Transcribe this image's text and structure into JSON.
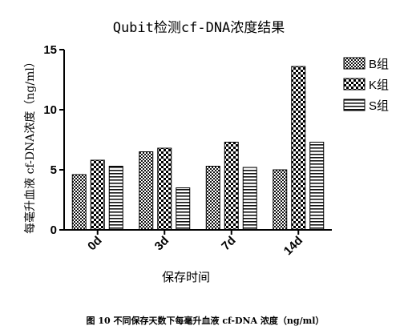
{
  "chart_data": {
    "type": "bar",
    "title": "Qubit检测cf-DNA浓度结果",
    "xlabel": "保存时间",
    "ylabel": "每毫升血液 cf-DNA浓度（ng/ml）",
    "categories": [
      "0d",
      "3d",
      "7d",
      "14d"
    ],
    "series": [
      {
        "name": "B组",
        "values": [
          4.6,
          6.5,
          5.3,
          5.0
        ],
        "pattern": "checker-fine"
      },
      {
        "name": "K组",
        "values": [
          5.8,
          6.8,
          7.3,
          13.6
        ],
        "pattern": "checker-coarse"
      },
      {
        "name": "S组",
        "values": [
          5.3,
          3.5,
          5.2,
          7.3
        ],
        "pattern": "horizontal-lines"
      }
    ],
    "ylim": [
      0,
      15
    ],
    "yticks": [
      "0",
      "5",
      "10",
      "15"
    ],
    "grid": false,
    "legend": "right"
  },
  "caption": "图 10  不同保存天数下每毫升血液 cf-DNA 浓度（ng/ml）"
}
